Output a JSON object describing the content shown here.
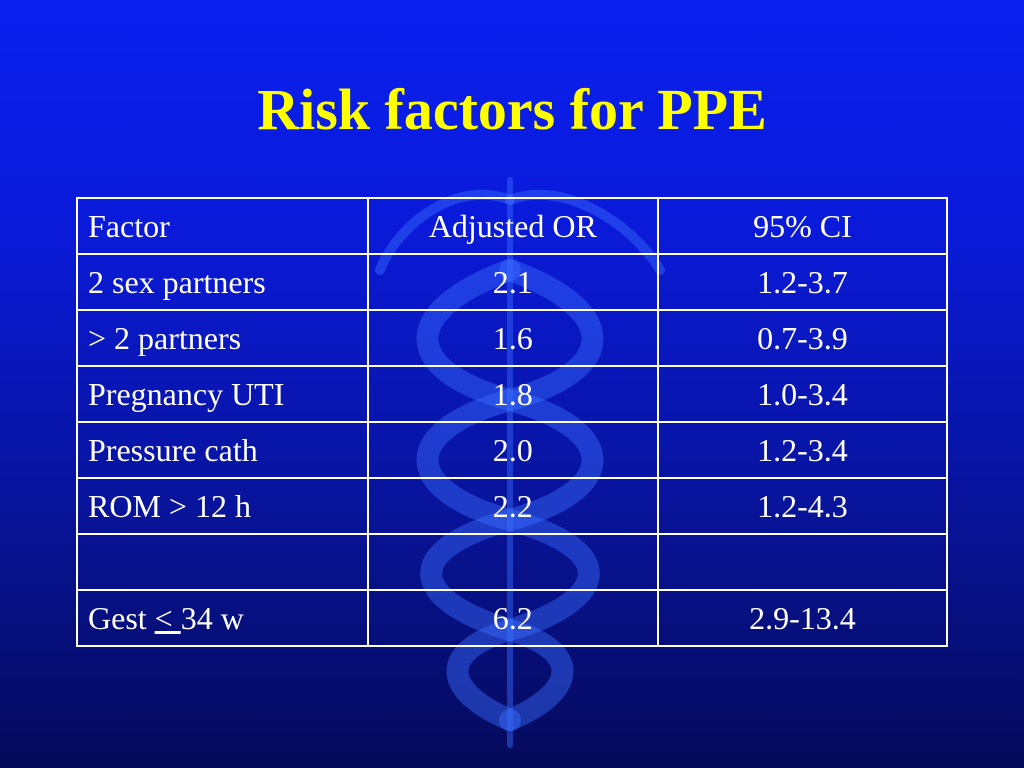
{
  "slide": {
    "title": "Risk factors for PPE"
  },
  "table": {
    "header": {
      "factor": "Factor",
      "or": "Adjusted OR",
      "ci": "95% CI"
    },
    "rows": [
      {
        "factor": "2 sex partners",
        "or": "2.1",
        "ci": "1.2-3.7"
      },
      {
        "factor": "> 2 partners",
        "or": "1.6",
        "ci": "0.7-3.9"
      },
      {
        "factor": "Pregnancy UTI",
        "or": "1.8",
        "ci": "1.0-3.4"
      },
      {
        "factor": "Pressure cath",
        "or": "2.0",
        "ci": "1.2-3.4"
      },
      {
        "factor": "ROM > 12 h",
        "or": "2.2",
        "ci": "1.2-4.3"
      },
      {
        "factor": "",
        "or": "",
        "ci": ""
      }
    ],
    "last_row": {
      "factor_prefix": "Gest ",
      "factor_symbol": "< ",
      "factor_suffix": "34 w",
      "or": "6.2",
      "ci": "2.9-13.4"
    }
  },
  "colors": {
    "background_top": "#0a20f0",
    "background_bottom": "#050a5a",
    "title": "#ffff00",
    "text": "#ffffff",
    "watermark": "#3a6cff"
  },
  "icons": {
    "watermark": "caduceus-icon"
  }
}
